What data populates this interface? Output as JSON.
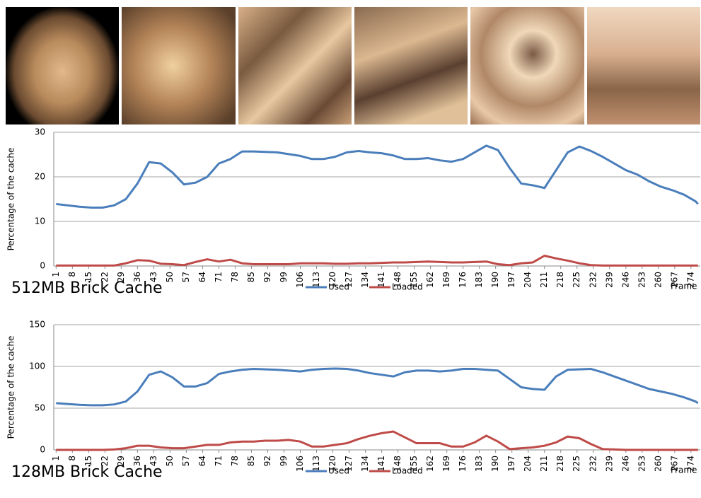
{
  "chart_data": [
    {
      "type": "line",
      "caption": "512MB Brick Cache",
      "ylabel": "Percentage of the cache",
      "xlabel": "Frame",
      "x": [
        1,
        6,
        11,
        16,
        21,
        26,
        31,
        36,
        41,
        46,
        51,
        56,
        61,
        66,
        71,
        76,
        81,
        86,
        91,
        96,
        101,
        106,
        111,
        116,
        121,
        126,
        131,
        136,
        141,
        146,
        151,
        156,
        161,
        166,
        171,
        176,
        181,
        186,
        191,
        196,
        201,
        206,
        211,
        216,
        221,
        226,
        231,
        236,
        241,
        246,
        251,
        256,
        261,
        266,
        271,
        276,
        277
      ],
      "xlim": [
        0,
        278
      ],
      "xticks": [
        1,
        8,
        15,
        22,
        29,
        36,
        43,
        50,
        57,
        64,
        71,
        78,
        85,
        92,
        99,
        106,
        113,
        120,
        127,
        134,
        141,
        148,
        155,
        162,
        169,
        176,
        183,
        190,
        197,
        204,
        211,
        218,
        225,
        232,
        239,
        246,
        253,
        260,
        267,
        274
      ],
      "ylim": [
        0,
        30
      ],
      "yticks": [
        0,
        10,
        20,
        30
      ],
      "grid": true,
      "series": [
        {
          "name": "Used",
          "color": "#4a7ebb",
          "values": [
            13.9,
            13.6,
            13.3,
            13.1,
            13.1,
            13.6,
            15,
            18.5,
            23.3,
            23,
            21,
            18.3,
            18.7,
            20,
            23,
            24,
            25.7,
            25.7,
            25.6,
            25.5,
            25.1,
            24.7,
            24,
            24,
            24.5,
            25.5,
            25.8,
            25.5,
            25.3,
            24.8,
            24,
            24,
            24.2,
            23.7,
            23.4,
            24,
            25.5,
            27,
            26,
            22,
            18.5,
            18.1,
            17.5,
            21.5,
            25.5,
            26.8,
            25.8,
            24.5,
            23,
            21.5,
            20.5,
            19,
            17.8,
            17,
            16,
            14.5,
            13.9
          ]
        },
        {
          "name": "Loaded",
          "color": "#be4b48",
          "values": [
            0.1,
            0.1,
            0.1,
            0.1,
            0.1,
            0.1,
            0.6,
            1.3,
            1.2,
            0.5,
            0.4,
            0.2,
            0.9,
            1.5,
            1,
            1.4,
            0.6,
            0.4,
            0.4,
            0.4,
            0.4,
            0.6,
            0.6,
            0.6,
            0.5,
            0.5,
            0.6,
            0.6,
            0.7,
            0.8,
            0.8,
            0.9,
            1,
            0.9,
            0.8,
            0.8,
            0.9,
            1,
            0.4,
            0.2,
            0.6,
            0.8,
            2.3,
            1.7,
            1.2,
            0.6,
            0.2,
            0.1,
            0.1,
            0.1,
            0.1,
            0.1,
            0.1,
            0.1,
            0.1,
            0.1,
            0.1
          ]
        }
      ]
    },
    {
      "type": "line",
      "caption": "128MB Brick Cache",
      "ylabel": "Percentage of the cache",
      "xlabel": "Frame",
      "x": [
        1,
        6,
        11,
        16,
        21,
        26,
        31,
        36,
        41,
        46,
        51,
        56,
        61,
        66,
        71,
        76,
        81,
        86,
        91,
        96,
        101,
        106,
        111,
        116,
        121,
        126,
        131,
        136,
        141,
        146,
        151,
        156,
        161,
        166,
        171,
        176,
        181,
        186,
        191,
        196,
        201,
        206,
        211,
        216,
        221,
        226,
        231,
        236,
        241,
        246,
        251,
        256,
        261,
        266,
        271,
        276,
        277
      ],
      "xlim": [
        0,
        278
      ],
      "xticks": [
        1,
        8,
        15,
        22,
        29,
        36,
        43,
        50,
        57,
        64,
        71,
        78,
        85,
        92,
        99,
        106,
        113,
        120,
        127,
        134,
        141,
        148,
        155,
        162,
        169,
        176,
        183,
        190,
        197,
        204,
        211,
        218,
        225,
        232,
        239,
        246,
        253,
        260,
        267,
        274
      ],
      "ylim": [
        0,
        150
      ],
      "yticks": [
        0,
        50,
        100,
        150
      ],
      "grid": true,
      "series": [
        {
          "name": "Used",
          "color": "#4a7ebb",
          "values": [
            56,
            55,
            54,
            53.5,
            53.5,
            54.5,
            58,
            70,
            90,
            94,
            87,
            76,
            76,
            80,
            91,
            94,
            96,
            97,
            96.5,
            96,
            95,
            94,
            96,
            97,
            97.5,
            97,
            95,
            92,
            90,
            88,
            93,
            95,
            95,
            94,
            95,
            97,
            97,
            96,
            95,
            85,
            75,
            73,
            72,
            88,
            96,
            96.5,
            97,
            93,
            88,
            83,
            78,
            73,
            70,
            67,
            63,
            58,
            56
          ]
        },
        {
          "name": "Loaded",
          "color": "#be4b48",
          "values": [
            0,
            0,
            0,
            0,
            0,
            0.5,
            2,
            5,
            5,
            3,
            2,
            2,
            4,
            6,
            6,
            9,
            10,
            10,
            11,
            11,
            12,
            10,
            4,
            4,
            6,
            8,
            13,
            17,
            20,
            22,
            15,
            8,
            8,
            8,
            4,
            4,
            9,
            17,
            10,
            1,
            2,
            3,
            5,
            9,
            16,
            14,
            7,
            1,
            0.5,
            0,
            0,
            0,
            0,
            0,
            0,
            0,
            0
          ]
        }
      ]
    }
  ]
}
